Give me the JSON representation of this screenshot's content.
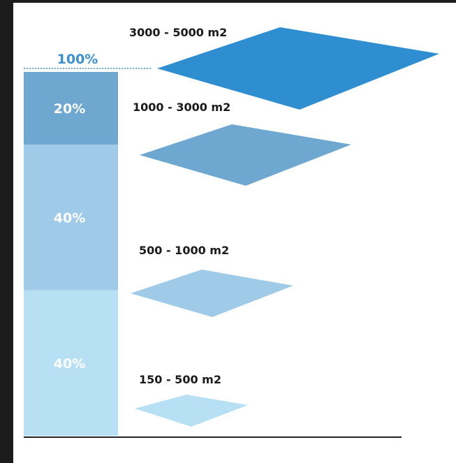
{
  "chart_data": {
    "type": "bar",
    "orientation": "stacked-vertical",
    "total_label": "100%",
    "segments": [
      {
        "label": "40%",
        "value": 40,
        "tier": "150 - 500 m2",
        "color": "#b8e0f5"
      },
      {
        "label": "40%",
        "value": 40,
        "tier": "500 - 1000 m2",
        "color": "#9fcbe8"
      },
      {
        "label": "20%",
        "value": 20,
        "tier": "1000 - 3000 m2",
        "color": "#6ea7cf"
      }
    ],
    "top_tier": {
      "tier": "3000 - 5000 m2",
      "color": "#2e8ecf"
    },
    "colors": {
      "total_line": "#3a8fd0",
      "baseline": "#222222",
      "frame": "#1c1c1c"
    }
  }
}
